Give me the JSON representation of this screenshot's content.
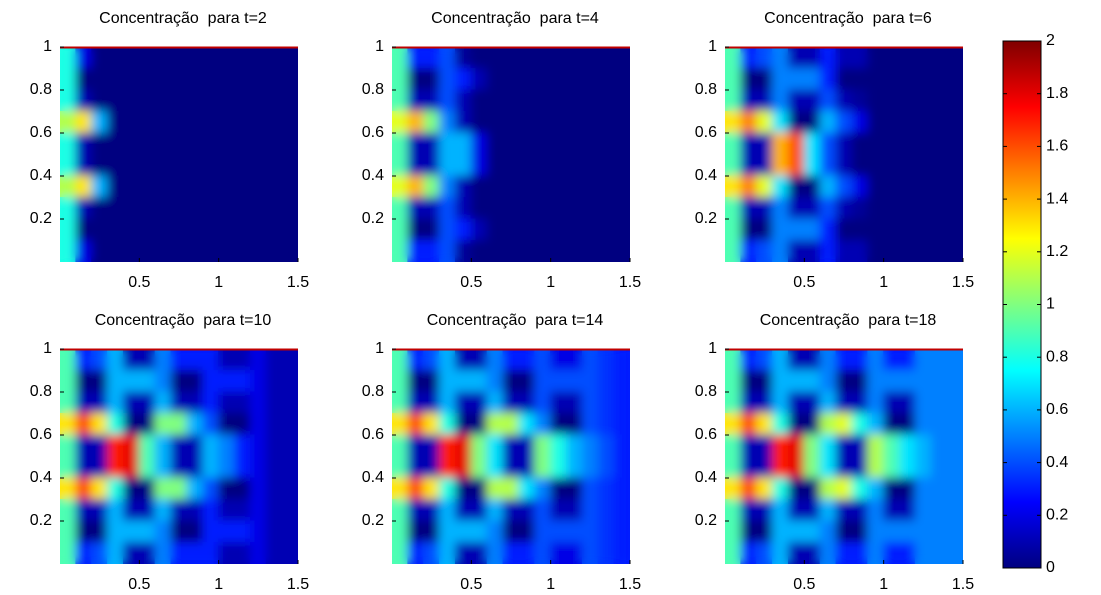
{
  "chart_data": [
    {
      "type": "heatmap",
      "title": "Concentração  para t=2",
      "clim": [
        0,
        2
      ],
      "x": [
        0.05,
        0.15,
        0.25,
        0.35,
        0.45,
        0.55,
        0.65,
        0.75,
        0.85,
        0.95,
        1.05,
        1.15,
        1.25,
        1.35,
        1.45
      ],
      "y": [
        0.95,
        0.85,
        0.75,
        0.65,
        0.55,
        0.45,
        0.35,
        0.25,
        0.15,
        0.05
      ],
      "z": [
        [
          0.8,
          0.2,
          0,
          0,
          0,
          0,
          0,
          0,
          0,
          0,
          0,
          0,
          0,
          0,
          0
        ],
        [
          0.8,
          0,
          0,
          0,
          0,
          0,
          0,
          0,
          0,
          0,
          0,
          0,
          0,
          0,
          0
        ],
        [
          0.8,
          0.1,
          0,
          0,
          0,
          0,
          0,
          0,
          0,
          0,
          0,
          0,
          0,
          0,
          0
        ],
        [
          1.1,
          1.3,
          0.6,
          0,
          0,
          0,
          0,
          0,
          0,
          0,
          0,
          0,
          0,
          0,
          0
        ],
        [
          0.8,
          0.1,
          0,
          0,
          0,
          0,
          0,
          0,
          0,
          0,
          0,
          0,
          0,
          0,
          0
        ],
        [
          0.8,
          0.1,
          0,
          0,
          0,
          0,
          0,
          0,
          0,
          0,
          0,
          0,
          0,
          0,
          0
        ],
        [
          1.1,
          1.3,
          0.6,
          0,
          0,
          0,
          0,
          0,
          0,
          0,
          0,
          0,
          0,
          0,
          0
        ],
        [
          0.8,
          0.1,
          0,
          0,
          0,
          0,
          0,
          0,
          0,
          0,
          0,
          0,
          0,
          0,
          0
        ],
        [
          0.8,
          0,
          0,
          0,
          0,
          0,
          0,
          0,
          0,
          0,
          0,
          0,
          0,
          0,
          0
        ],
        [
          0.8,
          0.2,
          0,
          0,
          0,
          0,
          0,
          0,
          0,
          0,
          0,
          0,
          0,
          0,
          0
        ]
      ],
      "xlim": [
        0,
        1.5
      ],
      "ylim": [
        0,
        1
      ],
      "xticks": [
        0.5,
        1,
        1.5
      ],
      "yticks": [
        0.2,
        0.4,
        0.6,
        0.8,
        1
      ]
    },
    {
      "type": "heatmap",
      "title": "Concentração  para t=4",
      "clim": [
        0,
        2
      ],
      "x": [
        0.05,
        0.15,
        0.25,
        0.35,
        0.45,
        0.55,
        0.65,
        0.75,
        0.85,
        0.95,
        1.05,
        1.15,
        1.25,
        1.35,
        1.45
      ],
      "y": [
        0.95,
        0.85,
        0.75,
        0.65,
        0.55,
        0.45,
        0.35,
        0.25,
        0.15,
        0.05
      ],
      "z": [
        [
          0.9,
          0.3,
          0.3,
          0.4,
          0.05,
          0,
          0,
          0,
          0,
          0,
          0,
          0,
          0,
          0,
          0
        ],
        [
          0.9,
          0,
          0,
          0.4,
          0.3,
          0.1,
          0,
          0,
          0,
          0,
          0,
          0,
          0,
          0,
          0
        ],
        [
          0.9,
          0.1,
          0.1,
          0.4,
          0.1,
          0,
          0,
          0,
          0,
          0,
          0,
          0,
          0,
          0,
          0
        ],
        [
          1.2,
          1.4,
          1.0,
          0.5,
          0.1,
          0,
          0,
          0,
          0,
          0,
          0,
          0,
          0,
          0,
          0
        ],
        [
          0.9,
          0.1,
          0.1,
          0.6,
          0.6,
          0.2,
          0,
          0,
          0,
          0,
          0,
          0,
          0,
          0,
          0
        ],
        [
          0.9,
          0.1,
          0.1,
          0.6,
          0.6,
          0.2,
          0,
          0,
          0,
          0,
          0,
          0,
          0,
          0,
          0
        ],
        [
          1.2,
          1.4,
          1.0,
          0.5,
          0.1,
          0,
          0,
          0,
          0,
          0,
          0,
          0,
          0,
          0,
          0
        ],
        [
          0.9,
          0.1,
          0.1,
          0.4,
          0.1,
          0,
          0,
          0,
          0,
          0,
          0,
          0,
          0,
          0,
          0
        ],
        [
          0.9,
          0,
          0,
          0.4,
          0.3,
          0.1,
          0,
          0,
          0,
          0,
          0,
          0,
          0,
          0,
          0
        ],
        [
          0.9,
          0.3,
          0.3,
          0.4,
          0.05,
          0,
          0,
          0,
          0,
          0,
          0,
          0,
          0,
          0,
          0
        ]
      ],
      "xlim": [
        0,
        1.5
      ],
      "ylim": [
        0,
        1
      ],
      "xticks": [
        0.5,
        1,
        1.5
      ],
      "yticks": [
        0.2,
        0.4,
        0.6,
        0.8,
        1
      ]
    },
    {
      "type": "heatmap",
      "title": "Concentração  para t=6",
      "clim": [
        0,
        2
      ],
      "x": [
        0.05,
        0.15,
        0.25,
        0.35,
        0.45,
        0.55,
        0.65,
        0.75,
        0.85,
        0.95,
        1.05,
        1.15,
        1.25,
        1.35,
        1.45
      ],
      "y": [
        0.95,
        0.85,
        0.75,
        0.65,
        0.55,
        0.45,
        0.35,
        0.25,
        0.15,
        0.05
      ],
      "z": [
        [
          0.9,
          0.3,
          0.4,
          0.5,
          0.1,
          0.1,
          0.3,
          0.1,
          0.1,
          0,
          0,
          0,
          0,
          0,
          0
        ],
        [
          0.9,
          0,
          0,
          0.5,
          0.5,
          0.5,
          0.3,
          0,
          0,
          0,
          0,
          0,
          0,
          0,
          0
        ],
        [
          0.9,
          0.1,
          0.1,
          0.5,
          0.1,
          0.1,
          0.4,
          0.1,
          0.05,
          0,
          0,
          0,
          0,
          0,
          0
        ],
        [
          1.3,
          1.5,
          1.2,
          0.7,
          0,
          0,
          0.6,
          0.4,
          0.2,
          0,
          0,
          0,
          0,
          0,
          0
        ],
        [
          0.9,
          0.1,
          0.1,
          1.4,
          1.6,
          0.7,
          0.4,
          0.1,
          0,
          0,
          0,
          0,
          0,
          0,
          0
        ],
        [
          0.9,
          0.1,
          0.1,
          1.4,
          1.6,
          0.7,
          0.4,
          0.1,
          0,
          0,
          0,
          0,
          0,
          0,
          0
        ],
        [
          1.3,
          1.5,
          1.2,
          0.7,
          0,
          0,
          0.6,
          0.4,
          0.2,
          0,
          0,
          0,
          0,
          0,
          0
        ],
        [
          0.9,
          0.1,
          0.1,
          0.5,
          0.1,
          0.1,
          0.4,
          0.1,
          0.05,
          0,
          0,
          0,
          0,
          0,
          0
        ],
        [
          0.9,
          0,
          0,
          0.5,
          0.5,
          0.5,
          0.3,
          0,
          0,
          0,
          0,
          0,
          0,
          0,
          0
        ],
        [
          0.9,
          0.3,
          0.4,
          0.5,
          0.1,
          0.1,
          0.3,
          0.1,
          0.1,
          0,
          0,
          0,
          0,
          0,
          0
        ]
      ],
      "xlim": [
        0,
        1.5
      ],
      "ylim": [
        0,
        1
      ],
      "xticks": [
        0.5,
        1,
        1.5
      ],
      "yticks": [
        0.2,
        0.4,
        0.6,
        0.8,
        1
      ]
    },
    {
      "type": "heatmap",
      "title": "Concentração  para t=10",
      "clim": [
        0,
        2
      ],
      "x": [
        0.05,
        0.15,
        0.25,
        0.35,
        0.45,
        0.55,
        0.65,
        0.75,
        0.85,
        0.95,
        1.05,
        1.15,
        1.25,
        1.35,
        1.45
      ],
      "y": [
        0.95,
        0.85,
        0.75,
        0.65,
        0.55,
        0.45,
        0.35,
        0.25,
        0.15,
        0.05
      ],
      "z": [
        [
          0.9,
          0.3,
          0.4,
          0.6,
          0.1,
          0.1,
          0.5,
          0.3,
          0.3,
          0.3,
          0.1,
          0.1,
          0.2,
          0.1,
          0.1
        ],
        [
          0.9,
          0,
          0,
          0.6,
          0.6,
          0.6,
          0.5,
          0,
          0,
          0.3,
          0.3,
          0.3,
          0.2,
          0.1,
          0.1
        ],
        [
          0.9,
          0.1,
          0.1,
          0.6,
          0.1,
          0.1,
          0.6,
          0.1,
          0.1,
          0.3,
          0.1,
          0.1,
          0.2,
          0.1,
          0.1
        ],
        [
          1.3,
          1.6,
          1.3,
          0.8,
          0,
          0,
          1.0,
          1.0,
          0.6,
          0.4,
          0,
          0,
          0.2,
          0.1,
          0.1
        ],
        [
          0.9,
          0.1,
          0.1,
          1.7,
          1.8,
          0.9,
          0.6,
          0.1,
          0.1,
          0.6,
          0.5,
          0.3,
          0.2,
          0.1,
          0.1
        ],
        [
          0.9,
          0.1,
          0.1,
          1.7,
          1.8,
          0.9,
          0.6,
          0.1,
          0.1,
          0.6,
          0.5,
          0.3,
          0.2,
          0.1,
          0.1
        ],
        [
          1.3,
          1.6,
          1.3,
          0.8,
          0,
          0,
          1.0,
          1.0,
          0.6,
          0.4,
          0,
          0,
          0.2,
          0.1,
          0.1
        ],
        [
          0.9,
          0.1,
          0.1,
          0.6,
          0.1,
          0.1,
          0.6,
          0.1,
          0.1,
          0.3,
          0.1,
          0.1,
          0.2,
          0.1,
          0.1
        ],
        [
          0.9,
          0,
          0,
          0.6,
          0.6,
          0.6,
          0.5,
          0,
          0,
          0.3,
          0.3,
          0.3,
          0.2,
          0.1,
          0.1
        ],
        [
          0.9,
          0.3,
          0.4,
          0.6,
          0.1,
          0.1,
          0.5,
          0.3,
          0.3,
          0.3,
          0.1,
          0.1,
          0.2,
          0.1,
          0.1
        ]
      ],
      "xlim": [
        0,
        1.5
      ],
      "ylim": [
        0,
        1
      ],
      "xticks": [
        0.5,
        1,
        1.5
      ],
      "yticks": [
        0.2,
        0.4,
        0.6,
        0.8,
        1
      ]
    },
    {
      "type": "heatmap",
      "title": "Concentração  para t=14",
      "clim": [
        0,
        2
      ],
      "x": [
        0.05,
        0.15,
        0.25,
        0.35,
        0.45,
        0.55,
        0.65,
        0.75,
        0.85,
        0.95,
        1.05,
        1.15,
        1.25,
        1.35,
        1.45
      ],
      "y": [
        0.95,
        0.85,
        0.75,
        0.65,
        0.55,
        0.45,
        0.35,
        0.25,
        0.15,
        0.05
      ],
      "z": [
        [
          0.9,
          0.3,
          0.4,
          0.6,
          0.1,
          0.1,
          0.5,
          0.3,
          0.3,
          0.4,
          0.2,
          0.2,
          0.4,
          0.35,
          0.3
        ],
        [
          0.9,
          0,
          0,
          0.6,
          0.6,
          0.6,
          0.5,
          0,
          0,
          0.4,
          0.4,
          0.4,
          0.4,
          0.35,
          0.3
        ],
        [
          0.9,
          0.1,
          0.1,
          0.6,
          0.1,
          0.1,
          0.6,
          0.1,
          0.1,
          0.4,
          0.1,
          0.1,
          0.4,
          0.35,
          0.3
        ],
        [
          1.3,
          1.6,
          1.3,
          0.8,
          0,
          0,
          1.1,
          1.1,
          0.7,
          0.5,
          0,
          0,
          0.4,
          0.35,
          0.3
        ],
        [
          0.9,
          0.1,
          0.1,
          1.7,
          1.8,
          1.0,
          0.7,
          0.1,
          0.1,
          1.0,
          0.8,
          0.6,
          0.5,
          0.4,
          0.3
        ],
        [
          0.9,
          0.1,
          0.1,
          1.7,
          1.8,
          1.0,
          0.7,
          0.1,
          0.1,
          1.0,
          0.8,
          0.6,
          0.5,
          0.4,
          0.3
        ],
        [
          1.3,
          1.6,
          1.3,
          0.8,
          0,
          0,
          1.1,
          1.1,
          0.7,
          0.5,
          0,
          0,
          0.4,
          0.35,
          0.3
        ],
        [
          0.9,
          0.1,
          0.1,
          0.6,
          0.1,
          0.1,
          0.6,
          0.1,
          0.1,
          0.4,
          0.1,
          0.1,
          0.4,
          0.35,
          0.3
        ],
        [
          0.9,
          0,
          0,
          0.6,
          0.6,
          0.6,
          0.5,
          0,
          0,
          0.4,
          0.4,
          0.4,
          0.4,
          0.35,
          0.3
        ],
        [
          0.9,
          0.3,
          0.4,
          0.6,
          0.1,
          0.1,
          0.5,
          0.3,
          0.3,
          0.4,
          0.2,
          0.2,
          0.4,
          0.35,
          0.3
        ]
      ],
      "xlim": [
        0,
        1.5
      ],
      "ylim": [
        0,
        1
      ],
      "xticks": [
        0.5,
        1,
        1.5
      ],
      "yticks": [
        0.2,
        0.4,
        0.6,
        0.8,
        1
      ]
    },
    {
      "type": "heatmap",
      "title": "Concentração  para t=18",
      "clim": [
        0,
        2
      ],
      "x": [
        0.05,
        0.15,
        0.25,
        0.35,
        0.45,
        0.55,
        0.65,
        0.75,
        0.85,
        0.95,
        1.05,
        1.15,
        1.25,
        1.35,
        1.45
      ],
      "y": [
        0.95,
        0.85,
        0.75,
        0.65,
        0.55,
        0.45,
        0.35,
        0.25,
        0.15,
        0.05
      ],
      "z": [
        [
          0.9,
          0.3,
          0.4,
          0.6,
          0.1,
          0.1,
          0.5,
          0.3,
          0.3,
          0.5,
          0.3,
          0.3,
          0.5,
          0.5,
          0.5
        ],
        [
          0.9,
          0,
          0,
          0.6,
          0.6,
          0.6,
          0.5,
          0,
          0,
          0.5,
          0.5,
          0.5,
          0.5,
          0.5,
          0.5
        ],
        [
          0.9,
          0.1,
          0.1,
          0.6,
          0.1,
          0.1,
          0.6,
          0.1,
          0.1,
          0.5,
          0.1,
          0.1,
          0.5,
          0.5,
          0.5
        ],
        [
          1.3,
          1.6,
          1.3,
          0.8,
          0,
          0,
          1.1,
          1.2,
          0.8,
          0.6,
          0,
          0,
          0.5,
          0.5,
          0.5
        ],
        [
          0.9,
          0.1,
          0.1,
          1.7,
          1.8,
          1.0,
          0.7,
          0.1,
          0.1,
          1.1,
          0.9,
          0.7,
          0.6,
          0.5,
          0.5
        ],
        [
          0.9,
          0.1,
          0.1,
          1.7,
          1.8,
          1.0,
          0.7,
          0.1,
          0.1,
          1.1,
          0.9,
          0.7,
          0.6,
          0.5,
          0.5
        ],
        [
          1.3,
          1.6,
          1.3,
          0.8,
          0,
          0,
          1.1,
          1.2,
          0.8,
          0.6,
          0,
          0,
          0.5,
          0.5,
          0.5
        ],
        [
          0.9,
          0.1,
          0.1,
          0.6,
          0.1,
          0.1,
          0.6,
          0.1,
          0.1,
          0.5,
          0.1,
          0.1,
          0.5,
          0.5,
          0.5
        ],
        [
          0.9,
          0,
          0,
          0.6,
          0.6,
          0.6,
          0.5,
          0,
          0,
          0.5,
          0.5,
          0.5,
          0.5,
          0.5,
          0.5
        ],
        [
          0.9,
          0.3,
          0.4,
          0.6,
          0.1,
          0.1,
          0.5,
          0.3,
          0.3,
          0.5,
          0.3,
          0.3,
          0.5,
          0.5,
          0.5
        ]
      ],
      "xlim": [
        0,
        1.5
      ],
      "ylim": [
        0,
        1
      ],
      "xticks": [
        0.5,
        1,
        1.5
      ],
      "yticks": [
        0.2,
        0.4,
        0.6,
        0.8,
        1
      ]
    },
    {
      "type": "colorbar",
      "colormap": "jet",
      "ylim": [
        0,
        2
      ],
      "yticks": [
        0,
        0.2,
        0.4,
        0.6,
        0.8,
        1,
        1.2,
        1.4,
        1.6,
        1.8,
        2
      ]
    }
  ]
}
